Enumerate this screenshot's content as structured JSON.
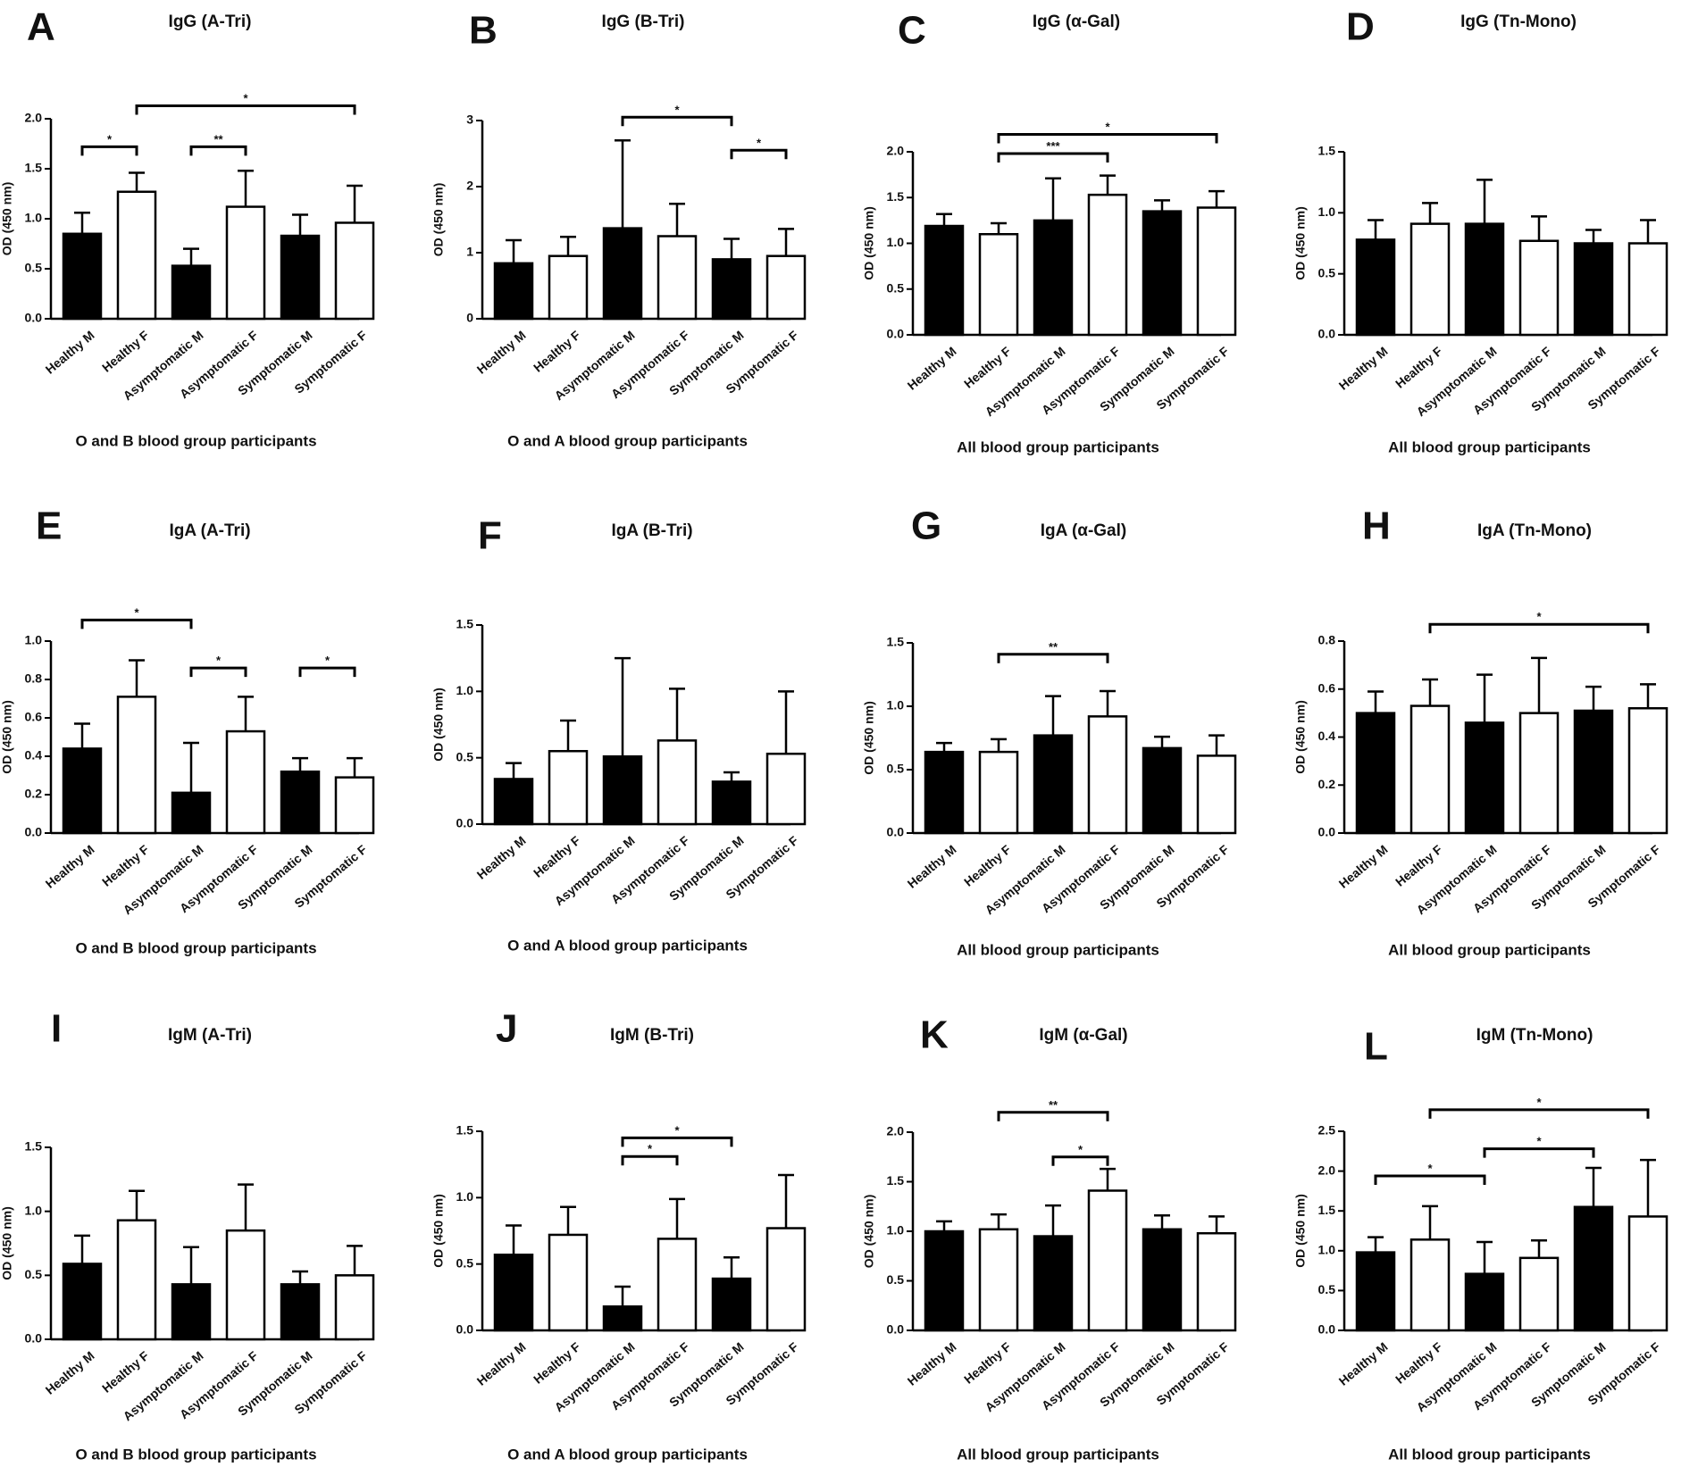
{
  "colors": {
    "ink": "#000000",
    "dark_bar": "#000000",
    "light_bar": "#ffffff",
    "background": "#ffffff"
  },
  "chart_data": [
    {
      "letter": "A",
      "type": "bar",
      "title": "IgG (A-Tri)",
      "ylabel": "OD (450 nm)",
      "xlabel": "O and B blood group participants",
      "ylim": [
        0,
        2.0
      ],
      "yticks": [
        "0.0",
        "0.5",
        "1.0",
        "1.5",
        "2.0"
      ],
      "categories": [
        "Healthy M",
        "Healthy F",
        "Asymptomatic M",
        "Asymptomatic F",
        "Symptomatic M",
        "Symptomatic F"
      ],
      "values": [
        0.85,
        1.27,
        0.53,
        1.12,
        0.83,
        0.96
      ],
      "errors": [
        0.21,
        0.19,
        0.17,
        0.36,
        0.21,
        0.37
      ],
      "significance": [
        {
          "from": 0,
          "to": 1,
          "level": 1.72,
          "label": "*"
        },
        {
          "from": 1,
          "to": 5,
          "level": 2.13,
          "label": "*"
        },
        {
          "from": 2,
          "to": 3,
          "level": 1.72,
          "label": "**"
        }
      ]
    },
    {
      "letter": "B",
      "type": "bar",
      "title": "IgG (B-Tri)",
      "ylabel": "OD (450 nm)",
      "xlabel": "O and A blood group participants",
      "ylim": [
        0,
        3
      ],
      "yticks": [
        "0",
        "1",
        "2",
        "3"
      ],
      "categories": [
        "Healthy M",
        "Healthy F",
        "Asymptomatic M",
        "Asymptomatic F",
        "Symptomatic M",
        "Symptomatic F"
      ],
      "values": [
        0.84,
        0.95,
        1.37,
        1.25,
        0.9,
        0.95
      ],
      "errors": [
        0.35,
        0.29,
        1.33,
        0.49,
        0.31,
        0.41
      ],
      "significance": [
        {
          "from": 2,
          "to": 4,
          "level": 3.05,
          "label": "*"
        },
        {
          "from": 4,
          "to": 5,
          "level": 2.55,
          "label": "*"
        }
      ]
    },
    {
      "letter": "C",
      "type": "bar",
      "title": "IgG (α-Gal)",
      "ylabel": "OD (450 nm)",
      "xlabel": "All blood group participants",
      "ylim": [
        0,
        2.0
      ],
      "yticks": [
        "0.0",
        "0.5",
        "1.0",
        "1.5",
        "2.0"
      ],
      "categories": [
        "Healthy M",
        "Healthy F",
        "Asymptomatic M",
        "Asymptomatic F",
        "Symptomatic M",
        "Symptomatic F"
      ],
      "values": [
        1.19,
        1.1,
        1.25,
        1.53,
        1.35,
        1.39
      ],
      "errors": [
        0.13,
        0.12,
        0.46,
        0.21,
        0.12,
        0.18
      ],
      "significance": [
        {
          "from": 1,
          "to": 3,
          "level": 1.98,
          "label": "***"
        },
        {
          "from": 1,
          "to": 5,
          "level": 2.19,
          "label": "*"
        }
      ]
    },
    {
      "letter": "D",
      "type": "bar",
      "title": "IgG (Tn-Mono)",
      "ylabel": "OD (450 nm)",
      "xlabel": "All blood group participants",
      "ylim": [
        0,
        1.5
      ],
      "yticks": [
        "0.0",
        "0.5",
        "1.0",
        "1.5"
      ],
      "categories": [
        "Healthy M",
        "Healthy F",
        "Asymptomatic M",
        "Asymptomatic F",
        "Symptomatic M",
        "Symptomatic F"
      ],
      "values": [
        0.78,
        0.91,
        0.91,
        0.77,
        0.75,
        0.75
      ],
      "errors": [
        0.16,
        0.17,
        0.36,
        0.2,
        0.11,
        0.19
      ],
      "significance": []
    },
    {
      "letter": "E",
      "type": "bar",
      "title": "IgA (A-Tri)",
      "ylabel": "OD (450 nm)",
      "xlabel": "O and B blood group participants",
      "ylim": [
        0,
        1.0
      ],
      "yticks": [
        "0.0",
        "0.2",
        "0.4",
        "0.6",
        "0.8",
        "1.0"
      ],
      "categories": [
        "Healthy M",
        "Healthy F",
        "Asymptomatic M",
        "Asymptomatic F",
        "Symptomatic M",
        "Symptomatic F"
      ],
      "values": [
        0.44,
        0.71,
        0.21,
        0.53,
        0.32,
        0.29
      ],
      "errors": [
        0.13,
        0.19,
        0.26,
        0.18,
        0.07,
        0.1
      ],
      "significance": [
        {
          "from": 0,
          "to": 2,
          "level": 1.11,
          "label": "*"
        },
        {
          "from": 2,
          "to": 3,
          "level": 0.86,
          "label": "*"
        },
        {
          "from": 4,
          "to": 5,
          "level": 0.86,
          "label": "*"
        }
      ]
    },
    {
      "letter": "F",
      "type": "bar",
      "title": "IgA (B-Tri)",
      "ylabel": "OD (450 nm)",
      "xlabel": "O and A blood group participants",
      "ylim": [
        0,
        1.5
      ],
      "yticks": [
        "0.0",
        "0.5",
        "1.0",
        "1.5"
      ],
      "categories": [
        "Healthy M",
        "Healthy F",
        "Asymptomatic M",
        "Asymptomatic F",
        "Symptomatic M",
        "Symptomatic F"
      ],
      "values": [
        0.34,
        0.55,
        0.51,
        0.63,
        0.32,
        0.53
      ],
      "errors": [
        0.12,
        0.23,
        0.74,
        0.39,
        0.07,
        0.47
      ],
      "significance": []
    },
    {
      "letter": "G",
      "type": "bar",
      "title": "IgA (α-Gal)",
      "ylabel": "OD (450 nm)",
      "xlabel": "All blood group participants",
      "ylim": [
        0,
        1.5
      ],
      "yticks": [
        "0.0",
        "0.5",
        "1.0",
        "1.5"
      ],
      "categories": [
        "Healthy M",
        "Healthy F",
        "Asymptomatic M",
        "Asymptomatic F",
        "Symptomatic M",
        "Symptomatic F"
      ],
      "values": [
        0.64,
        0.64,
        0.77,
        0.92,
        0.67,
        0.61
      ],
      "errors": [
        0.07,
        0.1,
        0.31,
        0.2,
        0.09,
        0.16
      ],
      "significance": [
        {
          "from": 1,
          "to": 3,
          "level": 1.41,
          "label": "**"
        }
      ]
    },
    {
      "letter": "H",
      "type": "bar",
      "title": "IgA (Tn-Mono)",
      "ylabel": "OD (450 nm)",
      "xlabel": "All blood group participants",
      "ylim": [
        0,
        0.8
      ],
      "yticks": [
        "0.0",
        "0.2",
        "0.4",
        "0.6",
        "0.8"
      ],
      "categories": [
        "Healthy M",
        "Healthy F",
        "Asymptomatic M",
        "Asymptomatic F",
        "Symptomatic M",
        "Symptomatic F"
      ],
      "values": [
        0.5,
        0.53,
        0.46,
        0.5,
        0.51,
        0.52
      ],
      "errors": [
        0.09,
        0.11,
        0.2,
        0.23,
        0.1,
        0.1
      ],
      "significance": [
        {
          "from": 1,
          "to": 5,
          "level": 0.87,
          "label": "*"
        }
      ]
    },
    {
      "letter": "I",
      "type": "bar",
      "title": "IgM (A-Tri)",
      "ylabel": "OD (450 nm)",
      "xlabel": "O and B blood group participants",
      "ylim": [
        0,
        1.5
      ],
      "yticks": [
        "0.0",
        "0.5",
        "1.0",
        "1.5"
      ],
      "categories": [
        "Healthy M",
        "Healthy F",
        "Asymptomatic M",
        "Asymptomatic F",
        "Symptomatic M",
        "Symptomatic F"
      ],
      "values": [
        0.59,
        0.93,
        0.43,
        0.85,
        0.43,
        0.5
      ],
      "errors": [
        0.22,
        0.23,
        0.29,
        0.36,
        0.1,
        0.23
      ],
      "significance": []
    },
    {
      "letter": "J",
      "type": "bar",
      "title": "IgM (B-Tri)",
      "ylabel": "OD (450 nm)",
      "xlabel": "O and A blood group participants",
      "ylim": [
        0,
        1.5
      ],
      "yticks": [
        "0.0",
        "0.5",
        "1.0",
        "1.5"
      ],
      "categories": [
        "Healthy M",
        "Healthy F",
        "Asymptomatic M",
        "Asymptomatic F",
        "Symptomatic M",
        "Symptomatic F"
      ],
      "values": [
        0.57,
        0.72,
        0.18,
        0.69,
        0.39,
        0.77
      ],
      "errors": [
        0.22,
        0.21,
        0.15,
        0.3,
        0.16,
        0.4
      ],
      "significance": [
        {
          "from": 2,
          "to": 3,
          "level": 1.31,
          "label": "*"
        },
        {
          "from": 2,
          "to": 4,
          "level": 1.45,
          "label": "*"
        }
      ]
    },
    {
      "letter": "K",
      "type": "bar",
      "title": "IgM (α-Gal)",
      "ylabel": "OD (450 nm)",
      "xlabel": "All blood group participants",
      "ylim": [
        0,
        2.0
      ],
      "yticks": [
        "0.0",
        "0.5",
        "1.0",
        "1.5",
        "2.0"
      ],
      "categories": [
        "Healthy M",
        "Healthy F",
        "Asymptomatic M",
        "Asymptomatic F",
        "Symptomatic M",
        "Symptomatic F"
      ],
      "values": [
        1.0,
        1.02,
        0.95,
        1.41,
        1.02,
        0.98
      ],
      "errors": [
        0.1,
        0.15,
        0.31,
        0.22,
        0.14,
        0.17
      ],
      "significance": [
        {
          "from": 2,
          "to": 3,
          "level": 1.75,
          "label": "*"
        },
        {
          "from": 1,
          "to": 3,
          "level": 2.2,
          "label": "**"
        }
      ]
    },
    {
      "letter": "L",
      "type": "bar",
      "title": "IgM (Tn-Mono)",
      "ylabel": "OD (450 nm)",
      "xlabel": "All blood group participants",
      "ylim": [
        0,
        2.5
      ],
      "yticks": [
        "0.0",
        "0.5",
        "1.0",
        "1.5",
        "2.0",
        "2.5"
      ],
      "categories": [
        "Healthy M",
        "Healthy F",
        "Asymptomatic M",
        "Asymptomatic F",
        "Symptomatic M",
        "Symptomatic F"
      ],
      "values": [
        0.98,
        1.14,
        0.71,
        0.91,
        1.55,
        1.43
      ],
      "errors": [
        0.19,
        0.42,
        0.4,
        0.22,
        0.49,
        0.71
      ],
      "significance": [
        {
          "from": 0,
          "to": 2,
          "level": 1.94,
          "label": "*"
        },
        {
          "from": 2,
          "to": 4,
          "level": 2.28,
          "label": "*"
        },
        {
          "from": 1,
          "to": 5,
          "level": 2.77,
          "label": "*"
        }
      ]
    }
  ]
}
